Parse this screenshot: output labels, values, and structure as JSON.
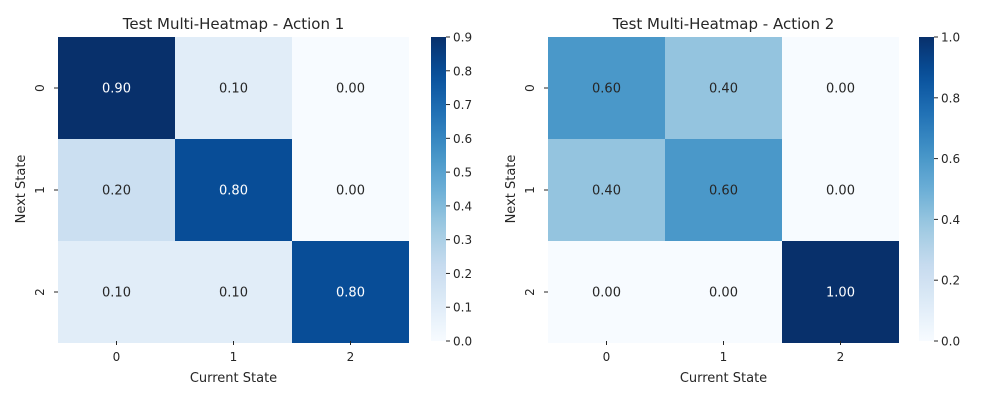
{
  "chart_data": [
    {
      "type": "heatmap",
      "title": "Test Multi-Heatmap - Action 1",
      "xlabel": "Current State",
      "ylabel": "Next State",
      "x_ticks": [
        "0",
        "1",
        "2"
      ],
      "y_ticks": [
        "0",
        "1",
        "2"
      ],
      "values": [
        [
          0.9,
          0.1,
          0.0
        ],
        [
          0.2,
          0.8,
          0.0
        ],
        [
          0.1,
          0.1,
          0.8
        ]
      ],
      "cell_labels": [
        [
          "0.90",
          "0.10",
          "0.00"
        ],
        [
          "0.20",
          "0.80",
          "0.00"
        ],
        [
          "0.10",
          "0.10",
          "0.80"
        ]
      ],
      "colormap": "Blues",
      "colorbar_range": [
        0.0,
        0.9
      ],
      "colorbar_ticks": [
        "0.0",
        "0.1",
        "0.2",
        "0.3",
        "0.4",
        "0.5",
        "0.6",
        "0.7",
        "0.8",
        "0.9"
      ],
      "grid": false
    },
    {
      "type": "heatmap",
      "title": "Test Multi-Heatmap - Action 2",
      "xlabel": "Current State",
      "ylabel": "Next State",
      "x_ticks": [
        "0",
        "1",
        "2"
      ],
      "y_ticks": [
        "0",
        "1",
        "2"
      ],
      "values": [
        [
          0.6,
          0.4,
          0.0
        ],
        [
          0.4,
          0.6,
          0.0
        ],
        [
          0.0,
          0.0,
          1.0
        ]
      ],
      "cell_labels": [
        [
          "0.60",
          "0.40",
          "0.00"
        ],
        [
          "0.40",
          "0.60",
          "0.00"
        ],
        [
          "0.00",
          "0.00",
          "1.00"
        ]
      ],
      "colormap": "Blues",
      "colorbar_range": [
        0.0,
        1.0
      ],
      "colorbar_ticks": [
        "0.0",
        "0.2",
        "0.4",
        "0.6",
        "0.8",
        "1.0"
      ],
      "grid": false
    }
  ]
}
